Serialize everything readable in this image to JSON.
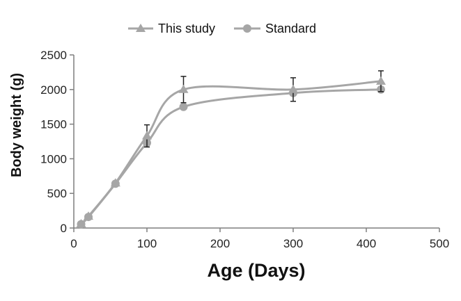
{
  "chart_data": {
    "type": "line",
    "title": "",
    "xlabel": "Age (Days)",
    "ylabel": "Body weight (g)",
    "xlim": [
      0,
      500
    ],
    "ylim": [
      0,
      2500
    ],
    "xticks": [
      0,
      100,
      200,
      300,
      400,
      500
    ],
    "yticks": [
      0,
      500,
      1000,
      1500,
      2000,
      2500
    ],
    "grid": false,
    "legend_position": "top-center",
    "series": [
      {
        "name": "This study",
        "marker": "triangle",
        "color": "#a6a6a6",
        "x": [
          10,
          20,
          57,
          100,
          150,
          300,
          420
        ],
        "y": [
          60,
          170,
          650,
          1330,
          2000,
          2000,
          2120
        ],
        "error": [
          null,
          null,
          null,
          160,
          190,
          170,
          150
        ]
      },
      {
        "name": "Standard",
        "marker": "circle",
        "color": "#a6a6a6",
        "x": [
          10,
          20,
          57,
          100,
          150,
          300,
          420
        ],
        "y": [
          55,
          160,
          640,
          1230,
          1750,
          1950,
          2000
        ]
      }
    ]
  }
}
